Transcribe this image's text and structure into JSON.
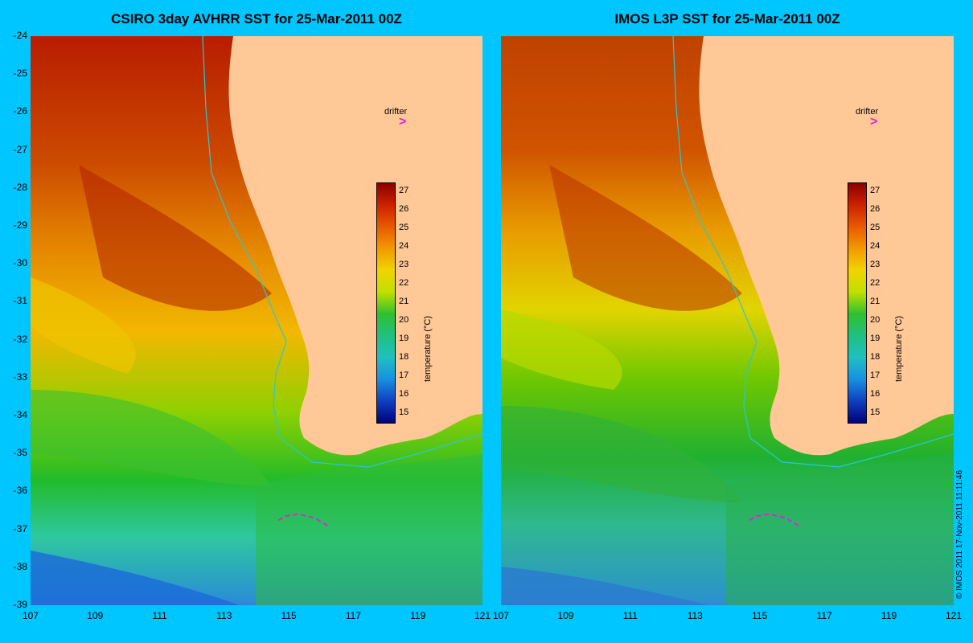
{
  "titles": {
    "left": "CSIRO 3day AVHRR SST for 25-Mar-2011 00Z",
    "right": "IMOS L3P SST for 25-Mar-2011 00Z"
  },
  "y_ticks": [
    "-24",
    "-25",
    "-26",
    "-27",
    "-28",
    "-29",
    "-30",
    "-31",
    "-32",
    "-33",
    "-34",
    "-35",
    "-36",
    "-37",
    "-38",
    "-39"
  ],
  "x_ticks_left": [
    "107",
    "109",
    "111",
    "113",
    "115",
    "117",
    "119",
    "121"
  ],
  "x_ticks_right": [
    "107",
    "109",
    "111",
    "113",
    "115",
    "117",
    "119",
    "121"
  ],
  "colorbar": {
    "ticks": [
      "27",
      "26",
      "25",
      "24",
      "23",
      "22",
      "21",
      "20",
      "19",
      "18",
      "17",
      "16",
      "15"
    ],
    "title": "temperature (°C)"
  },
  "legend": {
    "drifter_label": "drifter",
    "drifter_symbol": ">"
  },
  "copyright": "© IMOS 2011   17-Nov-2011 11:11:46",
  "colors": {
    "background": "#00c6ff",
    "land": "#ffc896",
    "drifter": "#e020e0"
  },
  "map_data": {
    "lon_range": [
      107,
      121
    ],
    "lat_range": [
      -39,
      -24
    ],
    "drifter_track": [
      [
        116.2,
        -36.9
      ],
      [
        115.8,
        -36.7
      ],
      [
        115.3,
        -36.6
      ],
      [
        114.9,
        -36.65
      ],
      [
        114.6,
        -36.8
      ]
    ]
  }
}
